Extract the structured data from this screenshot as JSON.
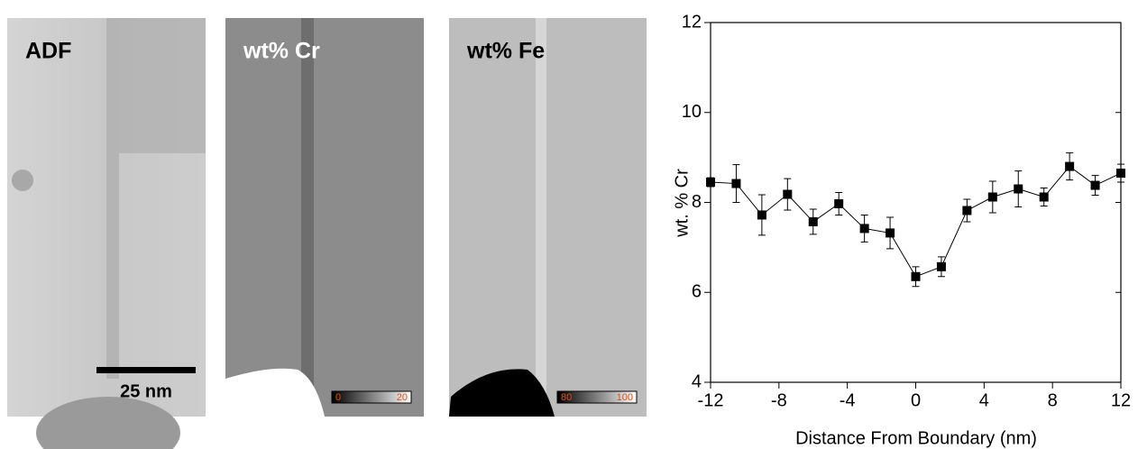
{
  "panels": [
    {
      "label": "ADF",
      "scale_bar": "25 nm"
    },
    {
      "label": "wt% Cr",
      "colorbar": [
        "0",
        "20"
      ]
    },
    {
      "label": "wt% Fe",
      "colorbar": [
        "80",
        "100"
      ]
    }
  ],
  "chart_data": {
    "type": "line",
    "x_label": "Distance From Boundary (nm)",
    "y_label": "wt. % Cr",
    "x": [
      -12,
      -10.5,
      -9,
      -7.5,
      -6,
      -4.5,
      -3,
      -1.5,
      0,
      1.5,
      3,
      4.5,
      6,
      7.5,
      9,
      10.5,
      12
    ],
    "values": [
      8.45,
      8.42,
      7.72,
      8.18,
      7.57,
      7.97,
      7.42,
      7.32,
      6.35,
      6.57,
      7.82,
      8.12,
      8.3,
      8.12,
      8.8,
      8.38,
      8.65
    ],
    "errors": [
      0.1,
      0.42,
      0.45,
      0.35,
      0.28,
      0.25,
      0.3,
      0.35,
      0.22,
      0.22,
      0.25,
      0.35,
      0.4,
      0.2,
      0.3,
      0.22,
      0.2
    ],
    "color": "#000000",
    "xlim": [
      -12,
      12
    ],
    "xticks": [
      -12,
      -8,
      -4,
      0,
      4,
      8,
      12
    ],
    "ylim": [
      4,
      12
    ],
    "yticks": [
      4,
      6,
      8,
      10,
      12
    ]
  }
}
